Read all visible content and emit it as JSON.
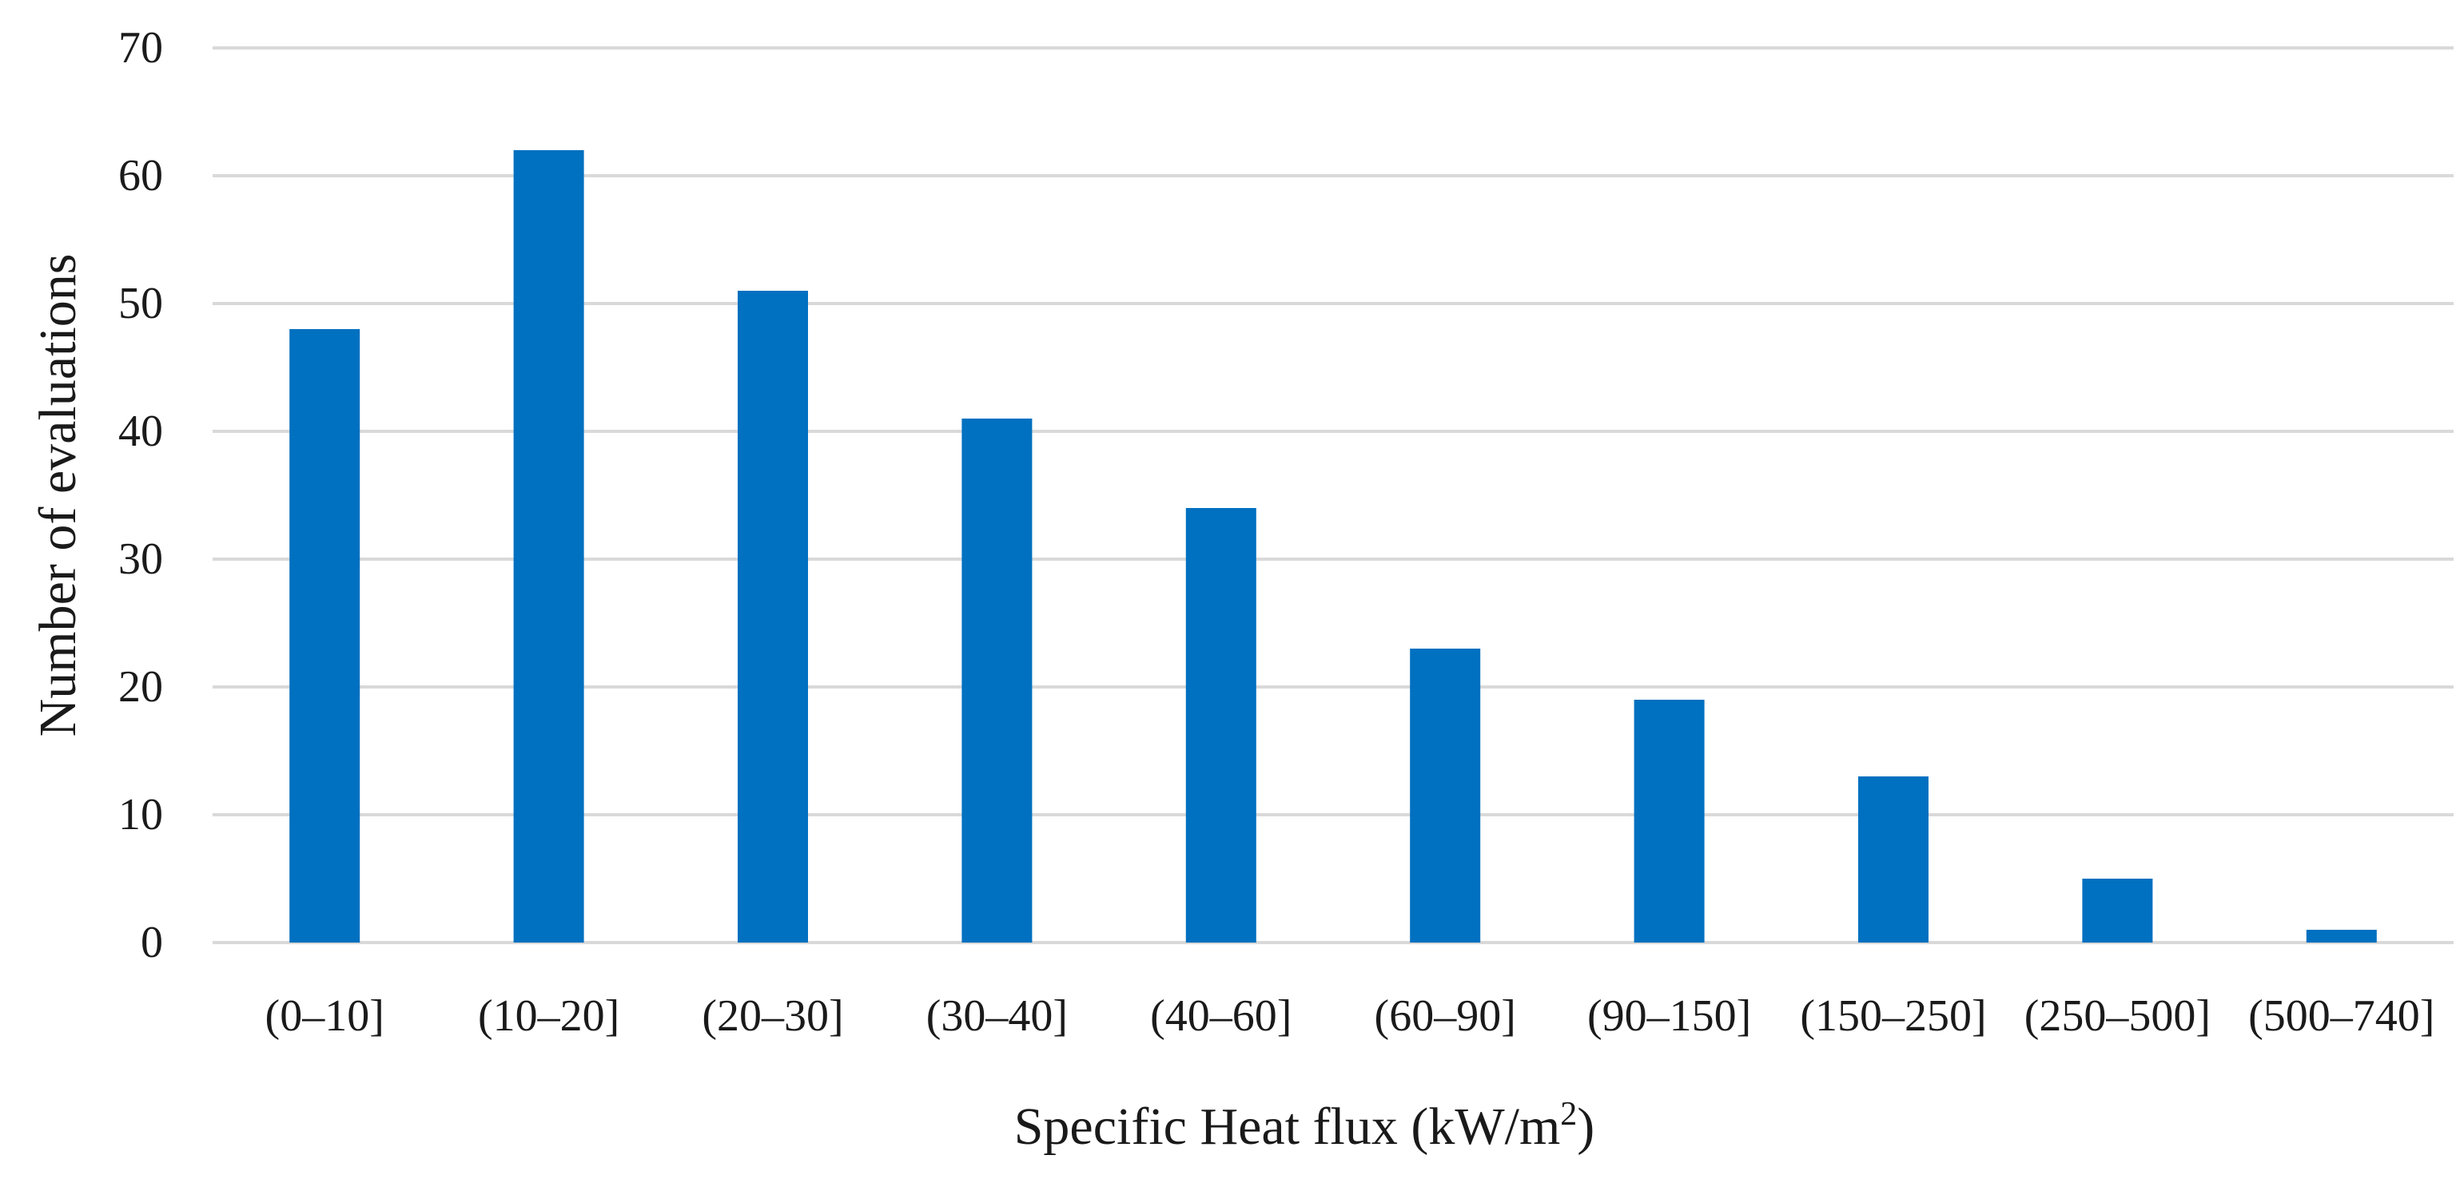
{
  "chart_data": {
    "type": "bar",
    "title": "",
    "xlabel": "Specific Heat flux (kW/m",
    "xlabel_superscript": "2",
    "xlabel_suffix": ")",
    "ylabel": "Number of evaluations",
    "categories": [
      "(0–10]",
      "(10–20]",
      "(20–30]",
      "(30–40]",
      "(40–60]",
      "(60–90]",
      "(90–150]",
      "(150–250]",
      "(250–500]",
      "(500–740]"
    ],
    "values": [
      48,
      62,
      51,
      41,
      34,
      23,
      19,
      13,
      5,
      1
    ],
    "ylim": [
      0,
      70
    ],
    "yticks": [
      0,
      10,
      20,
      30,
      40,
      50,
      60,
      70
    ],
    "grid": true,
    "legend": "none",
    "bar_color": "#0070c0"
  }
}
